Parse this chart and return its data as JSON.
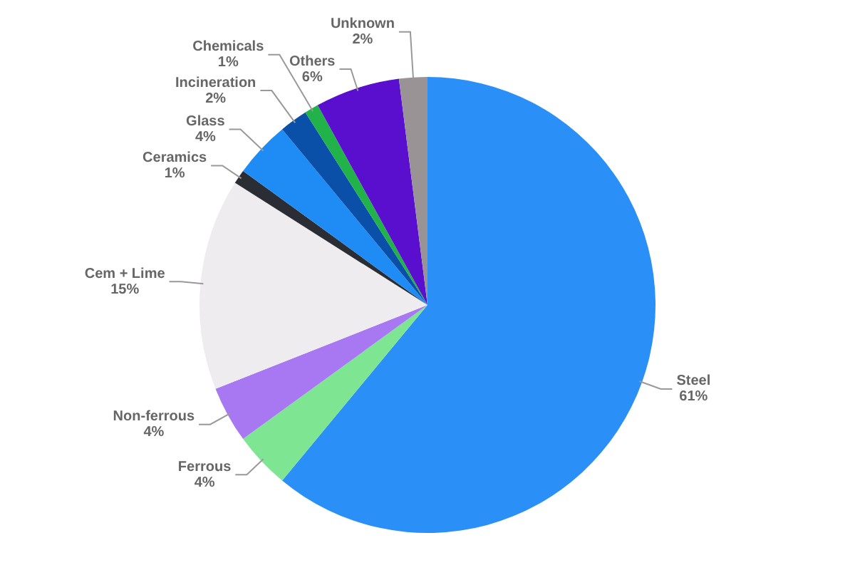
{
  "chart_data": {
    "type": "pie",
    "categories": [
      "Steel",
      "Ferrous",
      "Non-ferrous",
      "Cem + Lime",
      "Ceramics",
      "Glass",
      "Incineration",
      "Chemicals",
      "Others",
      "Unknown"
    ],
    "values": [
      61,
      4,
      4,
      15,
      1,
      4,
      2,
      1,
      6,
      2
    ],
    "value_labels": [
      "61%",
      "4%",
      "4%",
      "15%",
      "1%",
      "4%",
      "2%",
      "1%",
      "6%",
      "2%"
    ],
    "colors": [
      "#2b8ff8",
      "#7ee592",
      "#a878f2",
      "#efecef",
      "#2a2d33",
      "#1f8cf5",
      "#0a4fa8",
      "#22b24a",
      "#5a0fcf",
      "#9a9396"
    ],
    "legend": false
  }
}
